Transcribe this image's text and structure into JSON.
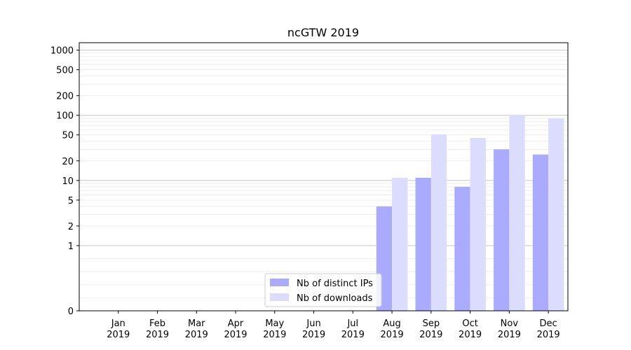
{
  "chart_data": {
    "type": "bar",
    "title": "ncGTW 2019",
    "xlabel": "",
    "ylabel": "",
    "categories": [
      [
        "Jan",
        "2019"
      ],
      [
        "Feb",
        "2019"
      ],
      [
        "Mar",
        "2019"
      ],
      [
        "Apr",
        "2019"
      ],
      [
        "May",
        "2019"
      ],
      [
        "Jun",
        "2019"
      ],
      [
        "Jul",
        "2019"
      ],
      [
        "Aug",
        "2019"
      ],
      [
        "Sep",
        "2019"
      ],
      [
        "Oct",
        "2019"
      ],
      [
        "Nov",
        "2019"
      ],
      [
        "Dec",
        "2019"
      ]
    ],
    "series": [
      {
        "name": "Nb of distinct IPs",
        "color": "#aaaaff",
        "values": [
          0,
          0,
          0,
          0,
          0,
          0,
          0,
          4,
          11,
          8,
          30,
          25
        ]
      },
      {
        "name": "Nb of downloads",
        "color": "#dcdcff",
        "values": [
          0,
          0,
          0,
          0,
          0,
          0,
          0,
          11,
          51,
          45,
          102,
          89
        ]
      }
    ],
    "y_scale": "symlog",
    "ylim": [
      0,
      1300
    ],
    "y_ticks": [
      0,
      1,
      2,
      5,
      10,
      20,
      50,
      100,
      200,
      500,
      1000
    ],
    "y_tick_labels": [
      "0",
      "1",
      "2",
      "5",
      "10",
      "20",
      "50",
      "100",
      "200",
      "500",
      "1000"
    ],
    "grid": "on",
    "legend_position": "lower-center"
  }
}
